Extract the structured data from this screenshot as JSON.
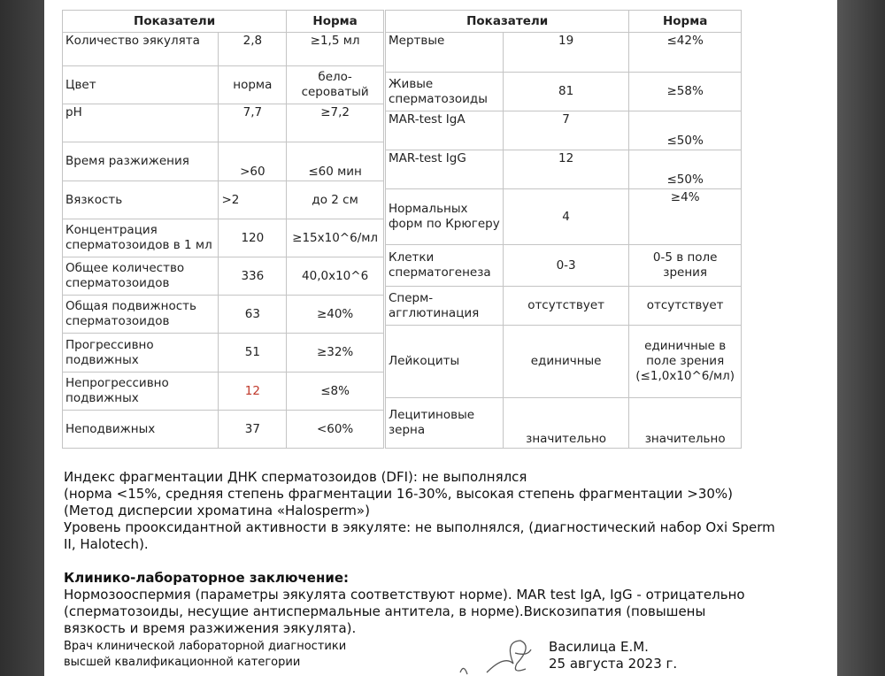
{
  "left_table": {
    "headers": [
      "Показатели",
      "Норма"
    ],
    "rows": [
      {
        "name": "Количество эякулята",
        "value": "2,8",
        "norm": "≥1,5 мл"
      },
      {
        "name": "Цвет",
        "value": "норма",
        "norm": "бело-сероватый"
      },
      {
        "name": "pH",
        "value": "7,7",
        "norm": "≥7,2"
      },
      {
        "name": "Время разжижения",
        "value": ">60",
        "norm": "≤60 мин"
      },
      {
        "name": "Вязкость",
        "value": ">2",
        "norm": "до 2 см"
      },
      {
        "name": "Концентрация сперматозоидов в 1 мл",
        "value": "120",
        "norm": "≥15x10^6/мл"
      },
      {
        "name": "Общее количество сперматозоидов",
        "value": "336",
        "norm": "40,0x10^6"
      },
      {
        "name": "Общая подвижность сперматозоидов",
        "value": "63",
        "norm": "≥40%"
      },
      {
        "name": "Прогрессивно подвижных",
        "value": "51",
        "norm": "≥32%"
      },
      {
        "name": "Непрогрессивно подвижных",
        "value": "12",
        "norm": "≤8%"
      },
      {
        "name": "Неподвижных",
        "value": "37",
        "norm": "<60%"
      }
    ]
  },
  "right_table": {
    "headers": [
      "Показатели",
      "Норма"
    ],
    "rows": [
      {
        "name": "Мертвые",
        "value": "19",
        "norm": "≤42%"
      },
      {
        "name": "Живые сперматозоиды",
        "value": "81",
        "norm": "≥58%"
      },
      {
        "name": "MAR-test IgA",
        "value": "7",
        "norm": "≤50%"
      },
      {
        "name": "MAR-test IgG",
        "value": "12",
        "norm": "≤50%"
      },
      {
        "name": "Нормальных форм по Крюгеру",
        "value": "4",
        "norm": "≥4%"
      },
      {
        "name": "Клетки сперматогенеза",
        "value": "0-3",
        "norm": "0-5 в поле зрения"
      },
      {
        "name": "Сперм-агглютинация",
        "value": "отсутствует",
        "norm": "отсутствует"
      },
      {
        "name": "Лейкоциты",
        "value": "единичные",
        "norm": "единичные в поле зрения (≤1,0x10^6/мл)"
      },
      {
        "name": "Лецитиновые зерна",
        "value": "значительно",
        "norm": "значительно"
      }
    ]
  },
  "notes": [
    "Индекс фрагментации ДНК сперматозоидов (DFI):  не выполнялся",
    "(норма <15%, средняя степень фрагментации 16-30%, высокая степень фрагментации >30%)",
    "(Метод дисперсии хроматина «Halosperm»)",
    "Уровень прооксидантной активности в эякуляте: не выполнялся, (диагностический набор Oxi Sperm II, Halotech)."
  ],
  "conclusion": {
    "title": "Клинико-лабораторное заключение:",
    "text": "Нормозооспермия (параметры эякулята соответствуют норме). MAR test IgA, IgG - отрицательно (сперматозоиды, несущие антиспермальные антитела, в норме).Вискозипатия (повышены вязкость и время разжижения эякулята)."
  },
  "doctor": {
    "position": "Врач клинической лабораторной диагностики высшей квалификационной категории",
    "name": "Василица Е.М.",
    "date": "25 августа 2023 г."
  },
  "highlight_color": "#c0392b"
}
